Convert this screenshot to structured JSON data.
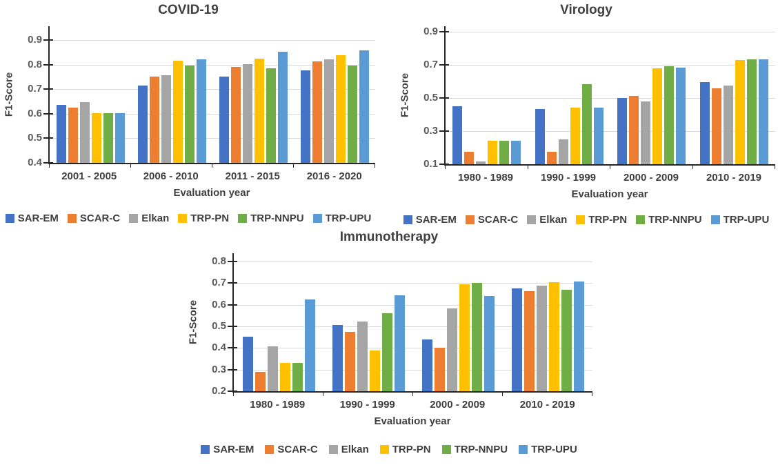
{
  "colors": {
    "axis": "#262626",
    "gridline": "#D9D9D9",
    "tick_text": "#595959",
    "label_text": "#404040",
    "background": "#ffffff"
  },
  "chart_data": [
    {
      "type": "bar",
      "title": "COVID-19",
      "xlabel": "Evaluation year",
      "ylabel": "F1-Score",
      "ylim": [
        0.4,
        0.9
      ],
      "yticks": [
        "0.4",
        "0.5",
        "0.6",
        "0.7",
        "0.8",
        "0.9"
      ],
      "grid": true,
      "legend_position": "bottom",
      "categories": [
        "2001 - 2005",
        "2006 - 2010",
        "2011 - 2015",
        "2016 - 2020"
      ],
      "series": [
        {
          "name": "SAR-EM",
          "color": "#4472C4",
          "values": [
            0.637,
            0.715,
            0.75,
            0.775
          ]
        },
        {
          "name": "SCAR-C",
          "color": "#ED7D31",
          "values": [
            0.625,
            0.75,
            0.79,
            0.813
          ]
        },
        {
          "name": "Elkan",
          "color": "#A5A5A5",
          "values": [
            0.648,
            0.757,
            0.801,
            0.82
          ]
        },
        {
          "name": "TRP-PN",
          "color": "#FFC000",
          "values": [
            0.602,
            0.817,
            0.825,
            0.837
          ]
        },
        {
          "name": "TRP-NNPU",
          "color": "#70AD47",
          "values": [
            0.602,
            0.797,
            0.786,
            0.797
          ]
        },
        {
          "name": "TRP-UPU",
          "color": "#5B9BD5",
          "values": [
            0.602,
            0.822,
            0.853,
            0.857
          ]
        }
      ]
    },
    {
      "type": "bar",
      "title": "Virology",
      "xlabel": "Evaluation year",
      "ylabel": "F1-Score",
      "ylim": [
        0.1,
        0.9
      ],
      "yticks": [
        "0.1",
        "0.3",
        "0.5",
        "0.7",
        "0.9"
      ],
      "grid": true,
      "legend_position": "bottom",
      "categories": [
        "1980 - 1989",
        "1990 - 1999",
        "2000 - 2009",
        "2010 - 2019"
      ],
      "series": [
        {
          "name": "SAR-EM",
          "color": "#4472C4",
          "values": [
            0.45,
            0.433,
            0.498,
            0.595
          ]
        },
        {
          "name": "SCAR-C",
          "color": "#ED7D31",
          "values": [
            0.175,
            0.175,
            0.512,
            0.558
          ]
        },
        {
          "name": "Elkan",
          "color": "#A5A5A5",
          "values": [
            0.115,
            0.248,
            0.478,
            0.576
          ]
        },
        {
          "name": "TRP-PN",
          "color": "#FFC000",
          "values": [
            0.243,
            0.443,
            0.678,
            0.73
          ]
        },
        {
          "name": "TRP-NNPU",
          "color": "#70AD47",
          "values": [
            0.243,
            0.583,
            0.69,
            0.735
          ]
        },
        {
          "name": "TRP-UPU",
          "color": "#5B9BD5",
          "values": [
            0.243,
            0.443,
            0.684,
            0.735
          ]
        }
      ]
    },
    {
      "type": "bar",
      "title": "Immunotherapy",
      "xlabel": "Evaluation year",
      "ylabel": "F1-Score",
      "ylim": [
        0.2,
        0.8
      ],
      "yticks": [
        "0.2",
        "0.3",
        "0.4",
        "0.5",
        "0.6",
        "0.7",
        "0.8"
      ],
      "grid": true,
      "legend_position": "bottom",
      "categories": [
        "1980 - 1989",
        "1990 - 1999",
        "2000 - 2009",
        "2010 - 2019"
      ],
      "series": [
        {
          "name": "SAR-EM",
          "color": "#4472C4",
          "values": [
            0.453,
            0.506,
            0.44,
            0.675
          ]
        },
        {
          "name": "SCAR-C",
          "color": "#ED7D31",
          "values": [
            0.289,
            0.475,
            0.401,
            0.662
          ]
        },
        {
          "name": "Elkan",
          "color": "#A5A5A5",
          "values": [
            0.409,
            0.522,
            0.584,
            0.687
          ]
        },
        {
          "name": "TRP-PN",
          "color": "#FFC000",
          "values": [
            0.331,
            0.387,
            0.695,
            0.705
          ]
        },
        {
          "name": "TRP-NNPU",
          "color": "#70AD47",
          "values": [
            0.331,
            0.561,
            0.7,
            0.67
          ]
        },
        {
          "name": "TRP-UPU",
          "color": "#5B9BD5",
          "values": [
            0.626,
            0.644,
            0.64,
            0.709
          ]
        }
      ]
    }
  ]
}
